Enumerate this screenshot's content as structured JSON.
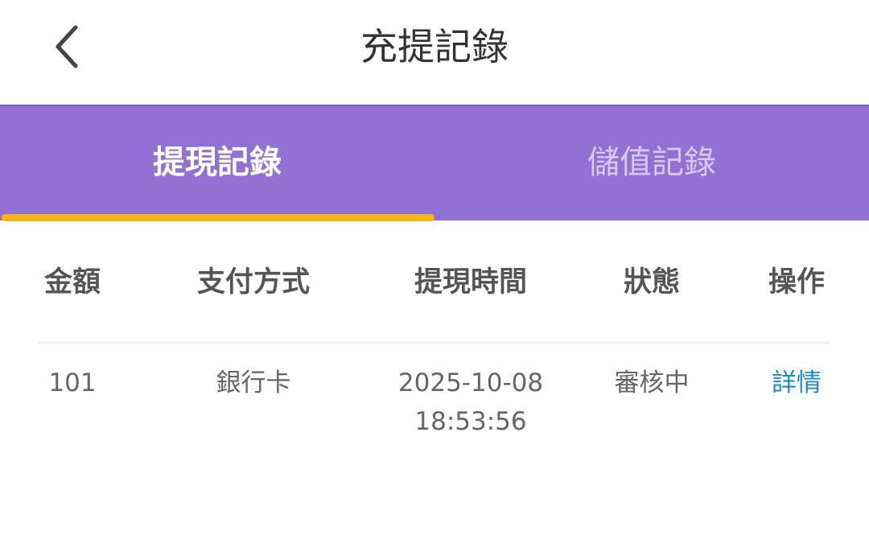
{
  "header": {
    "title": "充提記錄",
    "back_icon": "chevron-left-icon"
  },
  "tabs": [
    {
      "label": "提現記錄",
      "active": true
    },
    {
      "label": "儲值記錄",
      "active": false
    }
  ],
  "colors": {
    "tab_bar": "#9370d3",
    "indicator": "#f4b614",
    "link": "#1a8ad0"
  },
  "table": {
    "headers": [
      "金額",
      "支付方式",
      "提現時間",
      "狀態",
      "操作"
    ],
    "rows": [
      {
        "amount": "101",
        "method": "銀行卡",
        "date": "2025-10-08",
        "time": "18:53:56",
        "status": "審核中",
        "action": "詳情"
      }
    ]
  }
}
